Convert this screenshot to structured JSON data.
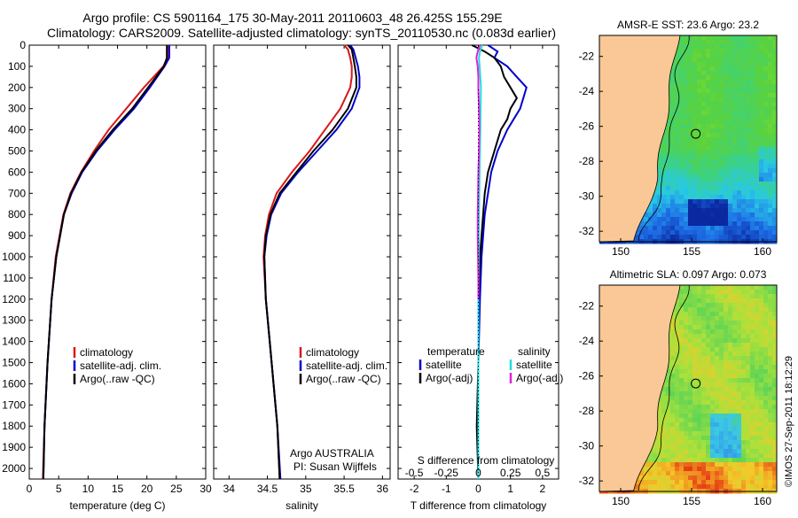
{
  "header": {
    "line1": "Argo profile: CS 5901164_175 30-May-2011 20110603_48 26.425S 155.29E",
    "line2": "Climatology: CARS2009. Satellite-adjusted climatology: synTS_20110530.nc (0.083d earlier)"
  },
  "side_credit": "©IMOS 27-Sep-2011 18:12:29",
  "colors": {
    "climatology": "#d7191c",
    "satellite": "#0000cc",
    "argo": "#000000",
    "salinity_satellite": "#22dddd",
    "salinity_argo": "#dd22dd",
    "land": "#f9c896"
  },
  "chart_data": [
    {
      "type": "line",
      "xlabel": "temperature (deg C)",
      "xlim": [
        0,
        30
      ],
      "xticks": [
        "0",
        "5",
        "10",
        "15",
        "20",
        "25",
        "30"
      ],
      "ylim": [
        0,
        2050
      ],
      "yticks": [
        "0",
        "100",
        "200",
        "300",
        "400",
        "500",
        "600",
        "700",
        "800",
        "900",
        "1000",
        "1100",
        "1200",
        "1300",
        "1400",
        "1500",
        "1600",
        "1700",
        "1800",
        "1900",
        "2000"
      ],
      "legend": [
        "climatology",
        "satellite-adj. clim.",
        "Argo(..raw -QC)"
      ],
      "series": [
        {
          "name": "climatology",
          "depth": [
            0,
            60,
            100,
            200,
            300,
            400,
            500,
            600,
            700,
            800,
            1000,
            1200,
            1500,
            1800,
            2050
          ],
          "values": [
            23.5,
            23.5,
            22.8,
            19.5,
            16.5,
            13.5,
            11.0,
            8.8,
            7.0,
            5.8,
            4.5,
            3.8,
            3.1,
            2.6,
            2.3
          ]
        },
        {
          "name": "satellite-adj. clim.",
          "depth": [
            0,
            60,
            100,
            200,
            300,
            400,
            500,
            600,
            700,
            800,
            1000,
            1200,
            1500,
            1800,
            2050
          ],
          "values": [
            23.8,
            23.8,
            23.0,
            20.5,
            17.8,
            14.5,
            11.5,
            9.0,
            7.2,
            5.9,
            4.6,
            3.8,
            3.1,
            2.6,
            2.4
          ]
        },
        {
          "name": "Argo(..raw -QC)",
          "depth": [
            0,
            60,
            100,
            200,
            300,
            400,
            500,
            600,
            700,
            800,
            1000,
            1200,
            1500,
            1800,
            2050
          ],
          "values": [
            23.4,
            23.4,
            22.9,
            20.2,
            17.5,
            14.2,
            11.3,
            8.9,
            7.1,
            5.9,
            4.6,
            3.8,
            3.1,
            2.6,
            2.4
          ]
        }
      ]
    },
    {
      "type": "line",
      "xlabel": "salinity",
      "xlim": [
        33.8,
        36.1
      ],
      "xticks": [
        "34",
        "34.5",
        "35",
        "35.5",
        "36"
      ],
      "ylim": [
        0,
        2050
      ],
      "legend": [
        "climatology",
        "satellite-adj. clim.",
        "Argo(..raw -QC)"
      ],
      "annotation": [
        "Argo AUSTRALIA",
        "PI: Susan Wijffels"
      ],
      "series": [
        {
          "name": "climatology",
          "depth": [
            0,
            20,
            60,
            100,
            150,
            200,
            300,
            400,
            500,
            600,
            700,
            800,
            900,
            1000,
            1200,
            1400,
            1600,
            1800,
            2050
          ],
          "values": [
            35.5,
            35.55,
            35.58,
            35.6,
            35.6,
            35.58,
            35.45,
            35.25,
            35.05,
            34.82,
            34.62,
            34.52,
            34.47,
            34.45,
            34.48,
            34.53,
            34.58,
            34.63,
            34.66
          ]
        },
        {
          "name": "satellite-adj. clim.",
          "depth": [
            0,
            20,
            60,
            100,
            150,
            200,
            300,
            400,
            500,
            600,
            700,
            800,
            900,
            1000,
            1200,
            1400,
            1600,
            1800,
            2050
          ],
          "values": [
            35.58,
            35.62,
            35.65,
            35.68,
            35.7,
            35.7,
            35.6,
            35.4,
            35.15,
            34.9,
            34.68,
            34.55,
            34.49,
            34.46,
            34.48,
            34.53,
            34.58,
            34.63,
            34.67
          ]
        },
        {
          "name": "Argo(..raw -QC)",
          "depth": [
            0,
            20,
            60,
            100,
            150,
            200,
            300,
            400,
            500,
            600,
            700,
            800,
            900,
            1000,
            1200,
            1400,
            1600,
            1800,
            2050
          ],
          "values": [
            35.55,
            35.6,
            35.62,
            35.64,
            35.66,
            35.66,
            35.55,
            35.35,
            35.1,
            34.88,
            34.66,
            34.54,
            34.48,
            34.46,
            34.48,
            34.53,
            34.58,
            34.63,
            34.66
          ]
        }
      ]
    },
    {
      "type": "line",
      "xlabel": "T difference from climatology",
      "xlabel_top": "S difference from climatology",
      "xlim": [
        -2.5,
        2.5
      ],
      "xticks": [
        "-2",
        "-1",
        "0",
        "1",
        "2"
      ],
      "xticks_top": [
        "-0.5",
        "-0.25",
        "0",
        "0.25",
        "0.5"
      ],
      "ylim": [
        0,
        2050
      ],
      "legend": {
        "temperature_title": "temperature",
        "salinity_title": "salinity",
        "items": [
          "satellite",
          "Argo(-adj)",
          "satellite",
          "Argo(-adj)"
        ]
      },
      "series": [
        {
          "name": "satellite",
          "depth": [
            0,
            30,
            60,
            100,
            150,
            200,
            250,
            300,
            350,
            400,
            500,
            600,
            700,
            800,
            900,
            1000,
            1200,
            1500,
            1800,
            2050
          ],
          "values": [
            0.3,
            0.6,
            0.5,
            0.9,
            1.2,
            1.5,
            1.4,
            1.3,
            1.1,
            0.9,
            0.6,
            0.4,
            0.3,
            0.2,
            0.15,
            0.1,
            0.05,
            0.0,
            0.0,
            0.0
          ]
        },
        {
          "name": "Argo(-adj)",
          "depth": [
            0,
            30,
            60,
            100,
            150,
            200,
            250,
            300,
            350,
            400,
            500,
            600,
            700,
            800,
            900,
            1000,
            1200,
            1500,
            1800,
            2050
          ],
          "values": [
            -0.2,
            0.2,
            0.5,
            0.7,
            0.8,
            1.0,
            1.2,
            1.0,
            0.9,
            0.7,
            0.5,
            0.3,
            0.2,
            0.15,
            0.1,
            0.05,
            0.0,
            0.0,
            -0.05,
            0.0
          ]
        },
        {
          "name": "satellite",
          "depth": [
            0,
            30,
            60,
            100,
            150,
            200,
            300,
            400,
            500,
            600,
            800,
            1000,
            1200,
            1500,
            1800,
            2050
          ],
          "values": [
            0.12,
            0.05,
            0.02,
            0.04,
            0.06,
            0.08,
            0.07,
            0.06,
            0.05,
            0.04,
            0.02,
            0.01,
            0.0,
            0.0,
            0.0,
            0.0
          ]
        },
        {
          "name": "Argo(-adj)",
          "depth": [
            0,
            30,
            60,
            100,
            150,
            200,
            300,
            400,
            500,
            600,
            800,
            900,
            1000,
            1100,
            1200
          ],
          "values": [
            0.05,
            -0.02,
            -0.06,
            -0.02,
            0.0,
            0.0,
            0.02,
            0.03,
            0.02,
            0.0,
            -0.02,
            -0.02,
            -0.01,
            0.0,
            0.0
          ]
        }
      ]
    },
    {
      "type": "heatmap",
      "title": "AMSR-E SST: 23.6 Argo: 23.2",
      "xticks": [
        "150",
        "155",
        "160"
      ],
      "yticks": [
        "-22",
        "-24",
        "-26",
        "-28",
        "-30",
        "-32"
      ],
      "xlim": [
        148.5,
        161
      ],
      "ylim": [
        -32.6,
        -20.8
      ],
      "argo_location": [
        155.29,
        -26.425
      ]
    },
    {
      "type": "heatmap",
      "title": "Altimetric SLA: 0.097 Argo: 0.073",
      "xticks": [
        "150",
        "155",
        "160"
      ],
      "yticks": [
        "-22",
        "-24",
        "-26",
        "-28",
        "-30",
        "-32"
      ],
      "xlim": [
        148.5,
        161
      ],
      "ylim": [
        -32.6,
        -20.8
      ],
      "argo_location": [
        155.29,
        -26.425
      ]
    }
  ]
}
